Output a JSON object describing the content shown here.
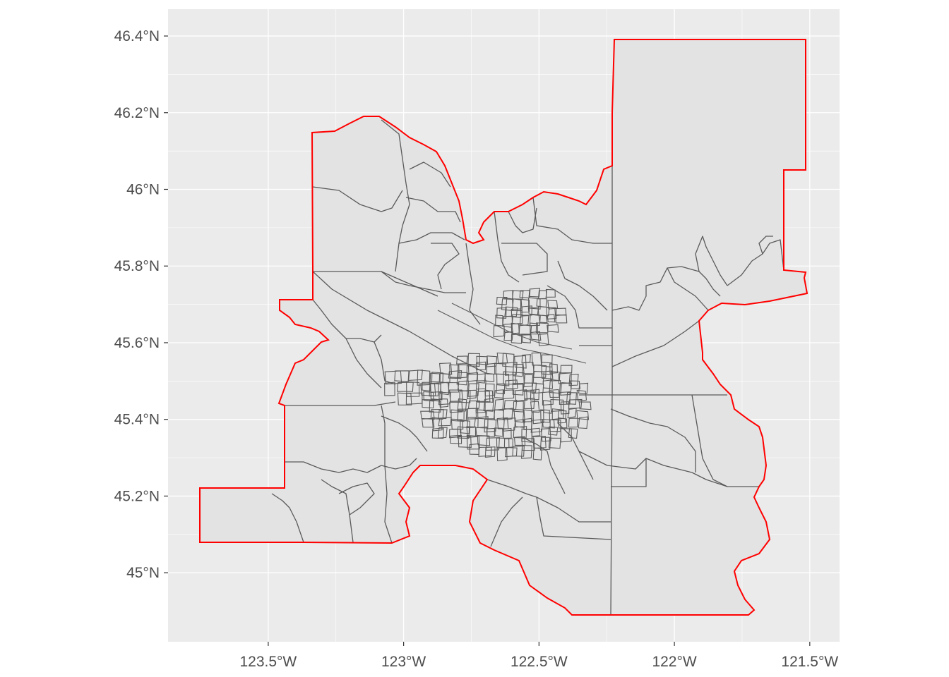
{
  "map": {
    "x_ticks": [
      {
        "lon": -123.5,
        "label": "123.5°W"
      },
      {
        "lon": -123.0,
        "label": "123°W"
      },
      {
        "lon": -122.5,
        "label": "122.5°W"
      },
      {
        "lon": -122.0,
        "label": "122°W"
      },
      {
        "lon": -121.5,
        "label": "121.5°W"
      }
    ],
    "y_ticks": [
      {
        "lat": 46.4,
        "label": "46.4°N"
      },
      {
        "lat": 46.2,
        "label": "46.2°N"
      },
      {
        "lat": 46.0,
        "label": "46°N"
      },
      {
        "lat": 45.8,
        "label": "45.8°N"
      },
      {
        "lat": 45.6,
        "label": "45.6°N"
      },
      {
        "lat": 45.4,
        "label": "45.4°N"
      },
      {
        "lat": 45.2,
        "label": "45.2°N"
      },
      {
        "lat": 45.0,
        "label": "45°N"
      }
    ],
    "lon_range": [
      -123.87,
      -121.39
    ],
    "lat_range": [
      44.82,
      46.47
    ],
    "colors": {
      "panel": "#ebebeb",
      "grid": "#ffffff",
      "tract_fill": "#e3e3e3",
      "tract_line": "#5a5a5a",
      "boundary": "#ff0000"
    }
  }
}
